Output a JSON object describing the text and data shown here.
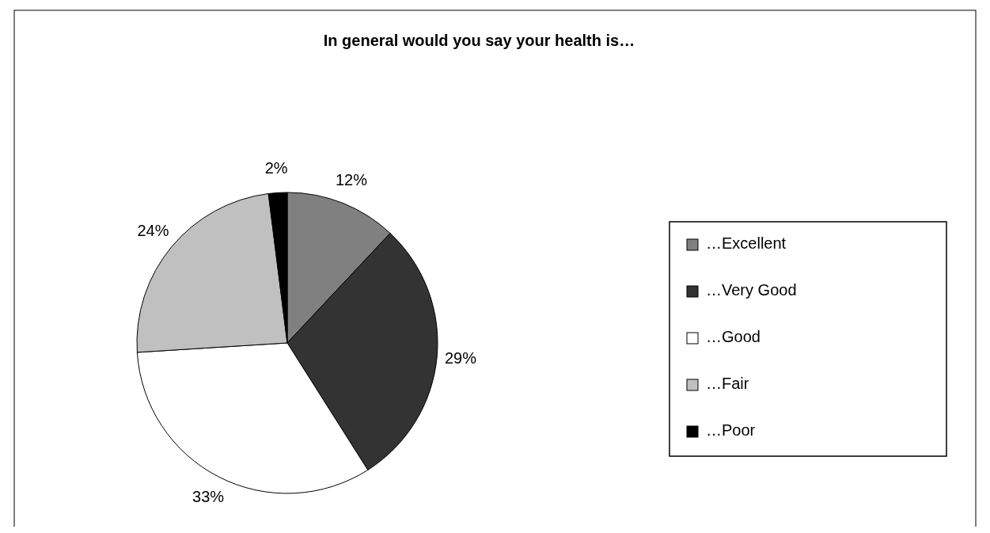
{
  "chart_data": {
    "type": "pie",
    "title": "In general would you say your health is…",
    "categories": [
      "…Excellent",
      "…Very Good",
      "…Good",
      "…Fair",
      "…Poor"
    ],
    "values": [
      12,
      29,
      33,
      24,
      2
    ],
    "colors": [
      "#808080",
      "#333333",
      "#ffffff",
      "#c0c0c0",
      "#000000"
    ],
    "value_labels": [
      "12%",
      "29%",
      "33%",
      "24%",
      "2%"
    ],
    "legend": "right"
  }
}
